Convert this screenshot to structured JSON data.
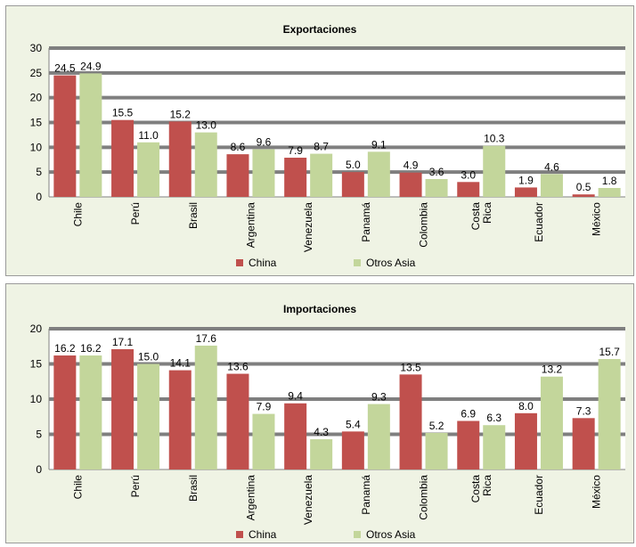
{
  "chart_data": [
    {
      "type": "bar",
      "title": "Exportaciones",
      "categories": [
        "Chile",
        "Perú",
        "Brasil",
        "Argentina",
        "Venezuela",
        "Panamá",
        "Colombia",
        "Costa Rica",
        "Ecuador",
        "México"
      ],
      "series": [
        {
          "name": "China",
          "color": "#c0504d",
          "values": [
            24.5,
            15.5,
            15.2,
            8.6,
            7.9,
            5.0,
            4.9,
            3.0,
            1.9,
            0.5
          ]
        },
        {
          "name": "Otros Asia",
          "color": "#c3d69b",
          "values": [
            24.9,
            11.0,
            13.0,
            9.6,
            8.7,
            9.1,
            3.6,
            10.3,
            4.6,
            1.8
          ]
        }
      ],
      "ylim": [
        0,
        30
      ],
      "yticks": [
        0,
        5,
        10,
        15,
        20,
        25,
        30
      ],
      "grid": true,
      "legend_position": "bottom"
    },
    {
      "type": "bar",
      "title": "Importaciones",
      "categories": [
        "Chile",
        "Perú",
        "Brasil",
        "Argentina",
        "Venezuela",
        "Panamá",
        "Colombia",
        "Costa Rica",
        "Ecuador",
        "México"
      ],
      "series": [
        {
          "name": "China",
          "color": "#c0504d",
          "values": [
            16.2,
            17.1,
            14.1,
            13.6,
            9.4,
            5.4,
            13.5,
            6.9,
            8.0,
            7.3
          ]
        },
        {
          "name": "Otros Asia",
          "color": "#c3d69b",
          "values": [
            16.2,
            15.0,
            17.6,
            7.9,
            4.3,
            9.3,
            5.2,
            6.3,
            13.2,
            15.7
          ]
        }
      ],
      "ylim": [
        0,
        20
      ],
      "yticks": [
        0,
        5,
        10,
        15,
        20
      ],
      "grid": true,
      "legend_position": "bottom"
    }
  ]
}
